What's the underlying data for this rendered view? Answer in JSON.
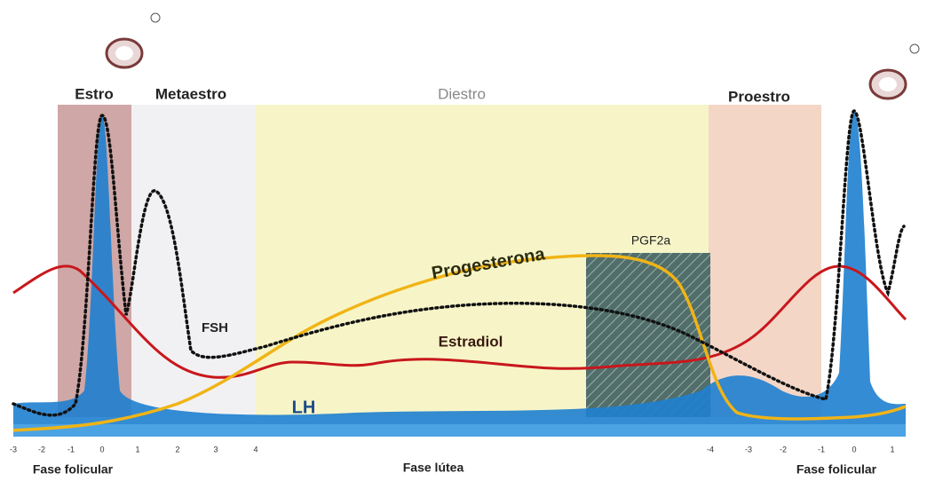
{
  "phases": {
    "estro": "Estro",
    "metaestro": "Metaestro",
    "diestro": "Diestro",
    "proestro": "Proestro"
  },
  "hormones": {
    "progesterona": "Progesterona",
    "pgf2a": "PGF2a",
    "fsh": "FSH",
    "estradiol": "Estradiol",
    "lh": "LH"
  },
  "axis_ticks": [
    "-3",
    "-2",
    "-1",
    "0",
    "1",
    "2",
    "3",
    "4",
    "-4",
    "-3",
    "-2",
    "-1",
    "0",
    "1"
  ],
  "phase_labels": [
    "Fase folicular",
    "Fase lútea",
    "Fase folicular"
  ]
}
